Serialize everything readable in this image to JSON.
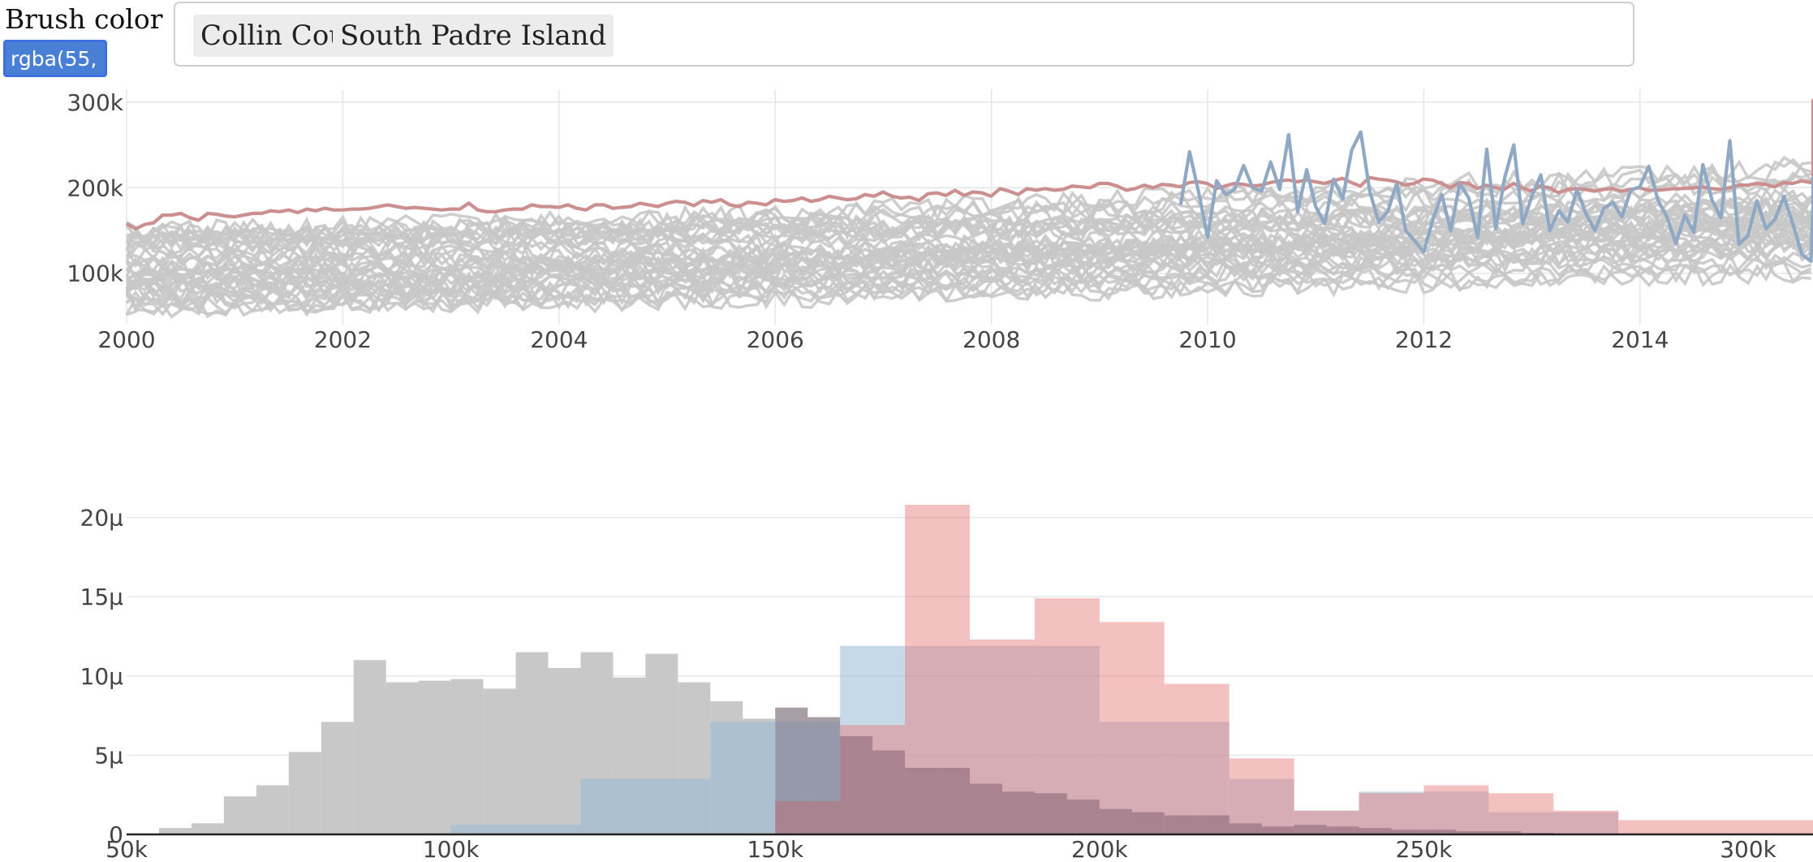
{
  "controls": {
    "brush_label": "Brush color",
    "brush_value": "rgba(55,",
    "selected": [
      "Collin County",
      "South Padre Island"
    ]
  },
  "colors": {
    "background_lines": "#c8c8c8",
    "collin_county": "#cc8f8f",
    "south_padre_island": "#8fa8c4",
    "hist_all": "#c8c8c8",
    "hist_blue": "rgba(150,185,215,0.55)",
    "hist_red": "rgba(232,125,125,0.48)",
    "hist_dark": "rgba(110,80,100,0.35)"
  },
  "chart_data": [
    {
      "type": "line",
      "xlim": [
        2000,
        2015.6
      ],
      "ylim": [
        40000,
        315000
      ],
      "x_ticks": [
        "2000",
        "2002",
        "2004",
        "2006",
        "2008",
        "2010",
        "2012",
        "2014"
      ],
      "x_tick_values": [
        2000,
        2002,
        2004,
        2006,
        2008,
        2010,
        2012,
        2014
      ],
      "y_ticks": [
        "100k",
        "200k",
        "300k"
      ],
      "y_tick_values": [
        100000,
        200000,
        300000
      ],
      "grid": true,
      "series": [
        {
          "name": "Collin County",
          "start": 2000,
          "step": 0.0833,
          "values": [
            158000,
            152000,
            157000,
            159000,
            168000,
            168000,
            170000,
            165000,
            162000,
            170000,
            169000,
            167000,
            166000,
            168000,
            170000,
            170000,
            173000,
            172000,
            174000,
            171000,
            175000,
            173000,
            176000,
            174000,
            174000,
            175000,
            175000,
            176000,
            178000,
            180000,
            178000,
            176000,
            177000,
            176000,
            175000,
            174000,
            175000,
            175000,
            182000,
            174000,
            172000,
            172000,
            174000,
            175000,
            175000,
            180000,
            178000,
            178000,
            177000,
            180000,
            176000,
            174000,
            180000,
            180000,
            176000,
            177000,
            178000,
            182000,
            180000,
            178000,
            182000,
            184000,
            183000,
            179000,
            185000,
            183000,
            186000,
            180000,
            178000,
            183000,
            182000,
            180000,
            186000,
            184000,
            185000,
            188000,
            184000,
            186000,
            190000,
            188000,
            186000,
            187000,
            192000,
            190000,
            195000,
            190000,
            188000,
            189000,
            185000,
            193000,
            194000,
            191000,
            197000,
            191000,
            195000,
            194000,
            190000,
            199000,
            196000,
            192000,
            199000,
            197000,
            199000,
            197000,
            198000,
            202000,
            201000,
            200000,
            205000,
            205000,
            202000,
            197000,
            199000,
            203000,
            200000,
            204000,
            203000,
            201000,
            206000,
            207000,
            205000,
            199000,
            202000,
            205000,
            204000,
            202000,
            203000,
            206000,
            208000,
            209000,
            207000,
            209000,
            207000,
            205000,
            208000,
            211000,
            206000,
            202000,
            212000,
            210000,
            209000,
            207000,
            203000,
            205000,
            210000,
            209000,
            205000,
            200000,
            206000,
            205000,
            199000,
            203000,
            200000,
            198000,
            205000,
            200000,
            196000,
            202000,
            200000,
            194000,
            198000,
            199000,
            198000,
            196000,
            198000,
            199000,
            196000,
            198000,
            200000,
            197000,
            197000,
            198000,
            199000,
            199000,
            200000,
            201000,
            199000,
            198000,
            200000,
            203000,
            203000,
            205000,
            204000,
            201000,
            206000,
            205000,
            208000,
            206000,
            210000,
            210000,
            210000,
            209000,
            213000,
            212000,
            216000,
            218000,
            220000,
            216000,
            218000,
            220000,
            221000,
            219000,
            220000,
            221000,
            224000,
            221000,
            224000,
            225000,
            228000,
            224000,
            230000,
            234000,
            238000,
            240000,
            236000,
            242000,
            245000,
            247000,
            243000,
            248000,
            251000,
            249000,
            253000,
            250000,
            247000,
            244000,
            255000,
            251000,
            258000,
            260000,
            258000,
            261000,
            266000,
            264000,
            265000,
            268000,
            269000,
            269000,
            270000,
            272000,
            276000,
            275000,
            282000,
            286000,
            283000,
            288000,
            292000,
            290000,
            295000,
            302000,
            300000,
            296000,
            298000
          ]
        },
        {
          "name": "South Padre Island",
          "start": 2009.75,
          "step": 0.0833,
          "values": [
            180000,
            242000,
            195000,
            142000,
            208000,
            192000,
            198000,
            226000,
            200000,
            196000,
            230000,
            198000,
            262000,
            172000,
            221000,
            178000,
            158000,
            210000,
            187000,
            244000,
            265000,
            196000,
            160000,
            172000,
            205000,
            150000,
            138000,
            125000,
            162000,
            192000,
            150000,
            205000,
            188000,
            142000,
            245000,
            152000,
            212000,
            250000,
            158000,
            190000,
            215000,
            150000,
            173000,
            160000,
            198000,
            170000,
            150000,
            176000,
            183000,
            166000,
            197000,
            201000,
            225000,
            186000,
            166000,
            135000,
            168000,
            148000,
            227000,
            186000,
            165000,
            255000,
            134000,
            144000,
            185000,
            152000,
            163000,
            190000,
            157000,
            122000,
            114000,
            178000,
            165000,
            184000,
            160000,
            177000,
            178000,
            163000,
            146000,
            173000,
            211000,
            158000,
            210000,
            142000,
            168000,
            198000,
            180000
          ]
        }
      ]
    },
    {
      "type": "bar",
      "xlim": [
        50000,
        310000
      ],
      "ylim": [
        0,
        2.1e-05
      ],
      "bin_width": 5000,
      "x_ticks": [
        "50k",
        "100k",
        "150k",
        "200k",
        "250k",
        "300k"
      ],
      "x_tick_values": [
        50000,
        100000,
        150000,
        200000,
        250000,
        300000
      ],
      "y_ticks": [
        "0",
        "5μ",
        "10μ",
        "15μ",
        "20μ"
      ],
      "y_tick_values": [
        0,
        5e-06,
        1e-05,
        1.5e-05,
        2e-05
      ],
      "grid": true,
      "series": [
        {
          "name": "all",
          "bin_starts": [
            55000,
            60000,
            65000,
            70000,
            75000,
            80000,
            85000,
            90000,
            95000,
            100000,
            105000,
            110000,
            115000,
            120000,
            125000,
            130000,
            135000,
            140000,
            145000,
            150000,
            155000,
            160000,
            165000,
            170000,
            175000,
            180000,
            185000,
            190000,
            195000,
            200000,
            205000,
            210000,
            215000,
            220000,
            225000,
            230000,
            235000,
            240000,
            245000,
            250000,
            255000,
            260000,
            265000
          ],
          "values": [
            4e-07,
            7e-07,
            2.4e-06,
            3.1e-06,
            5.2e-06,
            7.1e-06,
            1.1e-05,
            9.6e-06,
            9.7e-06,
            9.8e-06,
            9.2e-06,
            1.15e-05,
            1.05e-05,
            1.15e-05,
            9.9e-06,
            1.14e-05,
            9.6e-06,
            8.4e-06,
            7.3e-06,
            8e-06,
            7.4e-06,
            6.2e-06,
            5.3e-06,
            4.2e-06,
            4.2e-06,
            3.2e-06,
            2.7e-06,
            2.6e-06,
            2.2e-06,
            1.6e-06,
            1.4e-06,
            1.2e-06,
            1.2e-06,
            7e-07,
            5e-07,
            6e-07,
            5e-07,
            4e-07,
            3e-07,
            3e-07,
            2e-07,
            2e-07,
            1e-07
          ]
        },
        {
          "name": "South Padre Island",
          "bin_starts": [
            100000,
            120000,
            140000,
            160000,
            170000,
            180000,
            190000,
            200000,
            220000,
            230000,
            240000,
            250000,
            260000,
            270000
          ],
          "bin_ends": [
            120000,
            140000,
            160000,
            170000,
            180000,
            190000,
            200000,
            220000,
            230000,
            240000,
            250000,
            260000,
            270000,
            280000
          ],
          "values": [
            6e-07,
            3.5e-06,
            7.1e-06,
            1.19e-05,
            1.19e-05,
            1.19e-05,
            1.19e-05,
            7.1e-06,
            3.5e-06,
            1.5e-06,
            2.7e-06,
            2.7e-06,
            1.4e-06,
            1.4e-06
          ]
        },
        {
          "name": "Collin County",
          "bin_starts": [
            150000,
            160000,
            170000,
            180000,
            190000,
            200000,
            210000,
            220000,
            230000,
            240000,
            250000,
            260000,
            270000,
            280000
          ],
          "bin_ends": [
            160000,
            170000,
            180000,
            190000,
            200000,
            210000,
            220000,
            230000,
            240000,
            250000,
            260000,
            270000,
            280000,
            310000
          ],
          "values": [
            2.1e-06,
            6.9e-06,
            2.08e-05,
            1.23e-05,
            1.49e-05,
            1.34e-05,
            9.5e-06,
            4.8e-06,
            1.5e-06,
            2.6e-06,
            3.1e-06,
            2.6e-06,
            1.5e-06,
            9e-07
          ]
        }
      ]
    }
  ]
}
